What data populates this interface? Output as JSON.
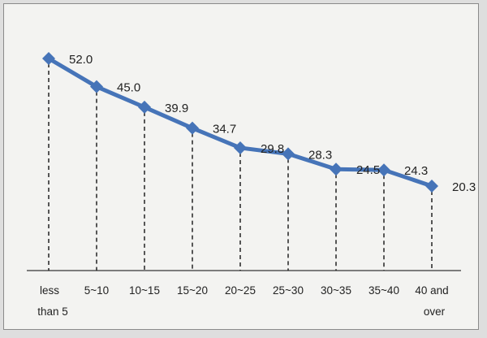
{
  "chart_data": {
    "type": "line",
    "categories": [
      [
        "less",
        "than 5"
      ],
      [
        "5~10"
      ],
      [
        "10~15"
      ],
      [
        "15~20"
      ],
      [
        "20~25"
      ],
      [
        "25~30"
      ],
      [
        "30~35"
      ],
      [
        "35~40"
      ],
      [
        "40 and",
        "over"
      ]
    ],
    "values": [
      52.0,
      45.0,
      39.9,
      34.7,
      29.8,
      28.3,
      24.5,
      24.3,
      20.3
    ],
    "value_labels": [
      "52.0",
      "45.0",
      "39.9",
      "34.7",
      "29.8",
      "28.3",
      "24.5",
      "24.3",
      "20.3"
    ],
    "title": "",
    "xlabel": "",
    "ylabel": "",
    "ylim": [
      0,
      60
    ],
    "grid": false,
    "drop_lines": true,
    "marker": "diamond",
    "line_color": "#4674b8",
    "marker_color": "#4674b8",
    "axis_color": "#555555",
    "background": "#f3f3f1",
    "legend": "none"
  }
}
